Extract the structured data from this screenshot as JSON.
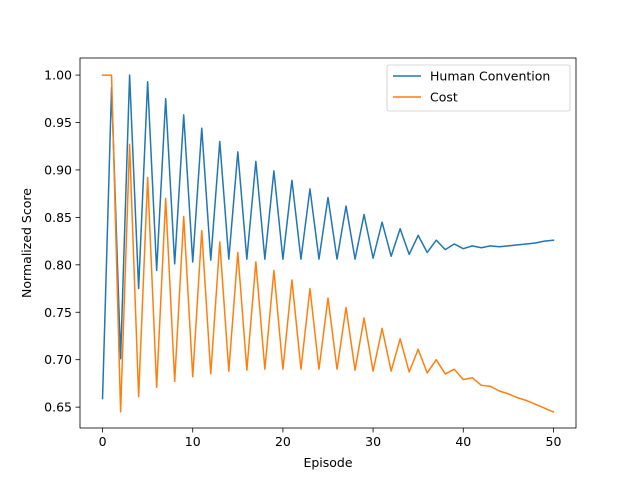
{
  "chart_data": {
    "type": "line",
    "title": "",
    "xlabel": "Episode",
    "ylabel": "Normalized Score",
    "xlim": [
      -2.5,
      52.5
    ],
    "ylim": [
      0.628,
      1.018
    ],
    "xticks": [
      "0",
      "10",
      "20",
      "30",
      "40",
      "50"
    ],
    "xtick_values": [
      0,
      10,
      20,
      30,
      40,
      50
    ],
    "yticks": [
      "0.65",
      "0.70",
      "0.75",
      "0.80",
      "0.85",
      "0.90",
      "0.95",
      "1.00"
    ],
    "ytick_values": [
      0.65,
      0.7,
      0.75,
      0.8,
      0.85,
      0.9,
      0.95,
      1.0
    ],
    "grid": false,
    "legend": "top-right",
    "x": [
      0,
      1,
      2,
      3,
      4,
      5,
      6,
      7,
      8,
      9,
      10,
      11,
      12,
      13,
      14,
      15,
      16,
      17,
      18,
      19,
      20,
      21,
      22,
      23,
      24,
      25,
      26,
      27,
      28,
      29,
      30,
      31,
      32,
      33,
      34,
      35,
      36,
      37,
      38,
      39,
      40,
      41,
      42,
      43,
      44,
      45,
      46,
      47,
      48,
      49,
      50
    ],
    "series": [
      {
        "name": "Human Convention",
        "color": "#1f77b4",
        "values": [
          0.659,
          0.987,
          0.701,
          1.0,
          0.775,
          0.993,
          0.794,
          0.975,
          0.801,
          0.958,
          0.803,
          0.944,
          0.805,
          0.93,
          0.806,
          0.919,
          0.806,
          0.909,
          0.806,
          0.899,
          0.806,
          0.889,
          0.806,
          0.88,
          0.806,
          0.871,
          0.806,
          0.862,
          0.806,
          0.853,
          0.807,
          0.845,
          0.809,
          0.838,
          0.811,
          0.831,
          0.813,
          0.826,
          0.816,
          0.822,
          0.817,
          0.82,
          0.818,
          0.82,
          0.819,
          0.82,
          0.821,
          0.822,
          0.823,
          0.825,
          0.826
        ]
      },
      {
        "name": "Cost",
        "color": "#ff7f0e",
        "values": [
          1.0,
          1.0,
          0.645,
          0.927,
          0.661,
          0.892,
          0.671,
          0.87,
          0.677,
          0.851,
          0.682,
          0.836,
          0.685,
          0.824,
          0.688,
          0.813,
          0.689,
          0.803,
          0.69,
          0.794,
          0.69,
          0.784,
          0.69,
          0.775,
          0.69,
          0.765,
          0.69,
          0.755,
          0.689,
          0.744,
          0.688,
          0.733,
          0.688,
          0.722,
          0.687,
          0.711,
          0.686,
          0.7,
          0.685,
          0.69,
          0.679,
          0.681,
          0.673,
          0.672,
          0.667,
          0.664,
          0.66,
          0.657,
          0.653,
          0.649,
          0.645
        ]
      }
    ]
  }
}
